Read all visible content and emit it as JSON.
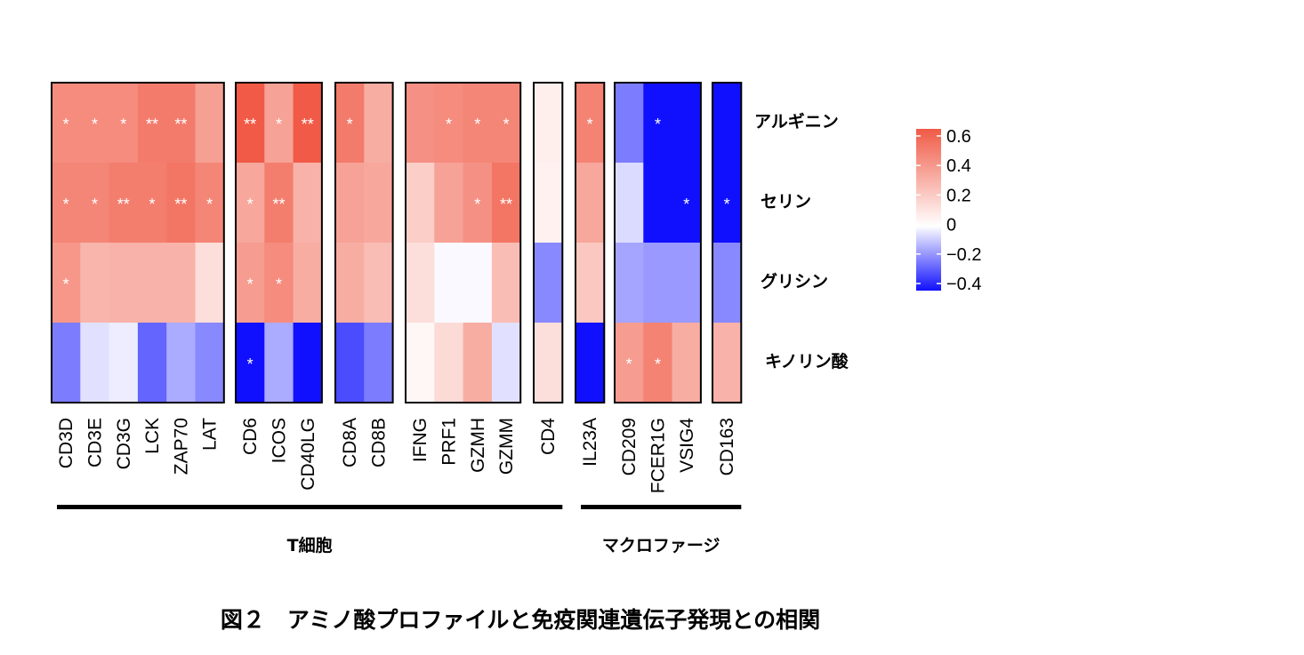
{
  "chart_data": {
    "type": "heatmap",
    "title": "",
    "rows": [
      "アルギニン",
      "セリン",
      "グリシン",
      "キノリン酸"
    ],
    "column_blocks": [
      [
        "CD3D",
        "CD3E",
        "CD3G",
        "LCK",
        "ZAP70",
        "LAT"
      ],
      [
        "CD6",
        "ICOS",
        "CD40LG"
      ],
      [
        "CD8A",
        "CD8B"
      ],
      [
        "IFNG",
        "PRF1",
        "GZMH",
        "GZMM"
      ],
      [
        "CD4"
      ],
      [
        "IL23A"
      ],
      [
        "CD209",
        "FCER1G",
        "VSIG4"
      ],
      [
        "CD163"
      ]
    ],
    "values": [
      [
        0.42,
        0.42,
        0.42,
        0.48,
        0.48,
        0.35,
        0.6,
        0.34,
        0.65,
        0.48,
        0.3,
        0.4,
        0.42,
        0.44,
        0.44,
        0.06,
        0.45,
        -0.22,
        -0.4,
        -0.4,
        -0.42
      ],
      [
        0.44,
        0.44,
        0.47,
        0.47,
        0.5,
        0.44,
        0.32,
        0.47,
        0.28,
        0.34,
        0.32,
        0.18,
        0.34,
        0.4,
        0.5,
        0.05,
        0.32,
        -0.06,
        -0.4,
        -0.45,
        -0.45
      ],
      [
        0.38,
        0.27,
        0.28,
        0.28,
        0.28,
        0.12,
        0.36,
        0.42,
        0.3,
        0.3,
        0.24,
        0.12,
        -0.01,
        -0.01,
        0.24,
        -0.2,
        0.2,
        -0.15,
        -0.17,
        -0.17,
        -0.2
      ],
      [
        -0.22,
        -0.05,
        -0.03,
        -0.26,
        -0.14,
        -0.2,
        -0.48,
        -0.14,
        -0.4,
        -0.3,
        -0.22,
        0.03,
        0.13,
        0.3,
        -0.05,
        0.12,
        -0.45,
        0.36,
        0.45,
        0.3,
        0.28
      ]
    ],
    "stars": [
      [
        "*",
        "*",
        "*",
        "**",
        "**",
        "",
        "**",
        "*",
        "**",
        "*",
        "",
        "",
        "*",
        "*",
        "*",
        "",
        "*",
        "",
        "*",
        "",
        ""
      ],
      [
        "*",
        "*",
        "**",
        "*",
        "**",
        "*",
        "*",
        "**",
        "",
        "",
        "",
        "",
        "",
        "*",
        "**",
        "",
        "",
        "",
        "",
        "*",
        "*"
      ],
      [
        "*",
        "",
        "",
        "",
        "",
        "",
        "*",
        "*",
        "",
        "",
        "",
        "",
        "",
        "",
        "",
        "",
        "",
        "",
        "",
        "",
        ""
      ],
      [
        "",
        "",
        "",
        "",
        "",
        "",
        "*",
        "",
        "",
        "",
        "",
        "",
        "",
        "",
        "",
        "",
        "",
        "*",
        "*",
        "",
        ""
      ]
    ],
    "color_scale": {
      "min": -0.4,
      "max": 0.6,
      "center": 0,
      "low_color": "#1010ff",
      "mid_color": "#ffffff",
      "high_color": "#f05a46",
      "ticks": [
        "0.6",
        "0.4",
        "0.2",
        "0",
        "−0.2",
        "−0.4"
      ],
      "tick_values": [
        0.6,
        0.4,
        0.2,
        0,
        -0.2,
        -0.4
      ]
    },
    "groups": [
      {
        "label": "T細胞",
        "start_col": 0,
        "end_col": 15
      },
      {
        "label": "マクロファージ",
        "start_col": 16,
        "end_col": 20
      }
    ]
  },
  "caption": "図２　アミノ酸プロファイルと免疫関連遺伝子発現との相関"
}
